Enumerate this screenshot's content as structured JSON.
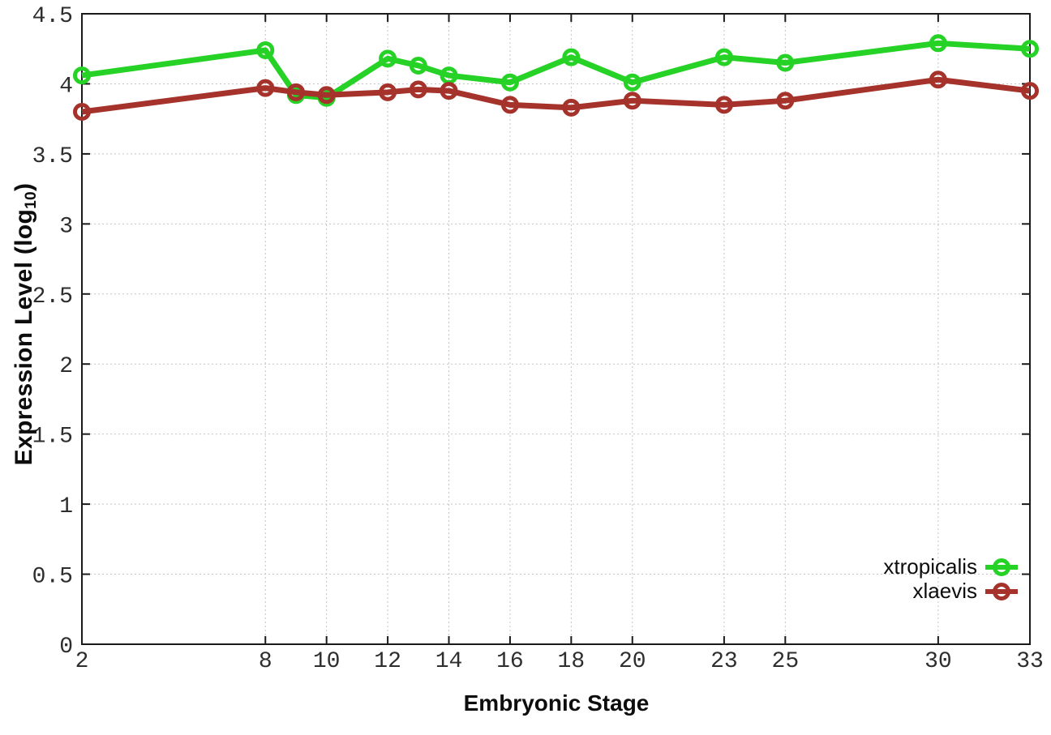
{
  "chart_data": {
    "type": "line",
    "title": "",
    "xlabel": "Embryonic Stage",
    "ylabel": "Expression Level (log10)",
    "ylabel_parts": {
      "main": "Expression Level (log",
      "sub": "10",
      "close": ")"
    },
    "x": [
      2,
      8,
      9,
      10,
      12,
      13,
      14,
      16,
      18,
      20,
      23,
      25,
      30,
      33
    ],
    "xlim": [
      2,
      33
    ],
    "ylim": [
      0,
      4.5
    ],
    "xticks": [
      2,
      8,
      10,
      12,
      14,
      16,
      18,
      20,
      23,
      25,
      30,
      33
    ],
    "xtick_labels": [
      "2",
      "8",
      "10",
      "12",
      "14",
      "16",
      "18",
      "20",
      "23",
      "25",
      "30",
      "33"
    ],
    "yticks": [
      0,
      0.5,
      1,
      1.5,
      2,
      2.5,
      3,
      3.5,
      4,
      4.5
    ],
    "ytick_labels": [
      "0",
      "0.5",
      "1",
      "1.5",
      "2",
      "2.5",
      "3",
      "3.5",
      "4",
      "4.5"
    ],
    "grid": true,
    "legend_position": "bottom-right",
    "series": [
      {
        "name": "xtropicalis",
        "color": "#25d225",
        "values": [
          4.06,
          4.24,
          3.92,
          3.9,
          4.18,
          4.13,
          4.06,
          4.01,
          4.19,
          4.01,
          4.19,
          4.15,
          4.29,
          4.25
        ]
      },
      {
        "name": "xlaevis",
        "color": "#a5332b",
        "values": [
          3.8,
          3.97,
          3.94,
          3.92,
          3.94,
          3.96,
          3.95,
          3.85,
          3.83,
          3.88,
          3.85,
          3.88,
          4.03,
          3.95
        ]
      }
    ],
    "style": {
      "grid_color": "#c4c4c4",
      "border_color": "#1a1a1a",
      "line_width": 7,
      "marker_radius": 8.5,
      "marker_stroke": 5
    }
  }
}
